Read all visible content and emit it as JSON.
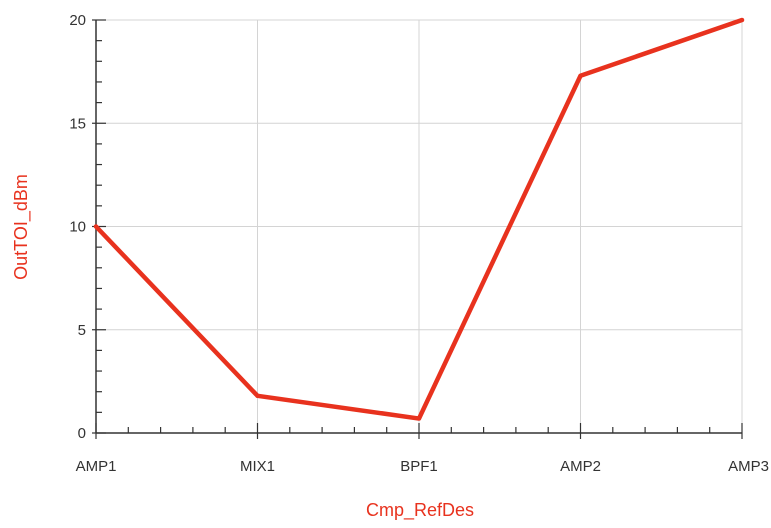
{
  "chart_data": {
    "type": "line",
    "categories": [
      "AMP1",
      "MIX1",
      "BPF1",
      "AMP2",
      "AMP3"
    ],
    "series": [
      {
        "values": [
          10,
          1.8,
          0.7,
          17.3,
          20
        ]
      }
    ],
    "xlabel": "Cmp_RefDes",
    "ylabel": "OutTOI_dBm",
    "ylim": [
      0,
      20
    ],
    "yticks": [
      0,
      5,
      10,
      15,
      20
    ],
    "y_minor_step": 1,
    "x_minor_per_interval": 4,
    "grid": true,
    "colors": {
      "line": "#e8321e",
      "axis_title": "#e8321e",
      "grid": "#d4d4d4",
      "axis": "#333333"
    }
  }
}
